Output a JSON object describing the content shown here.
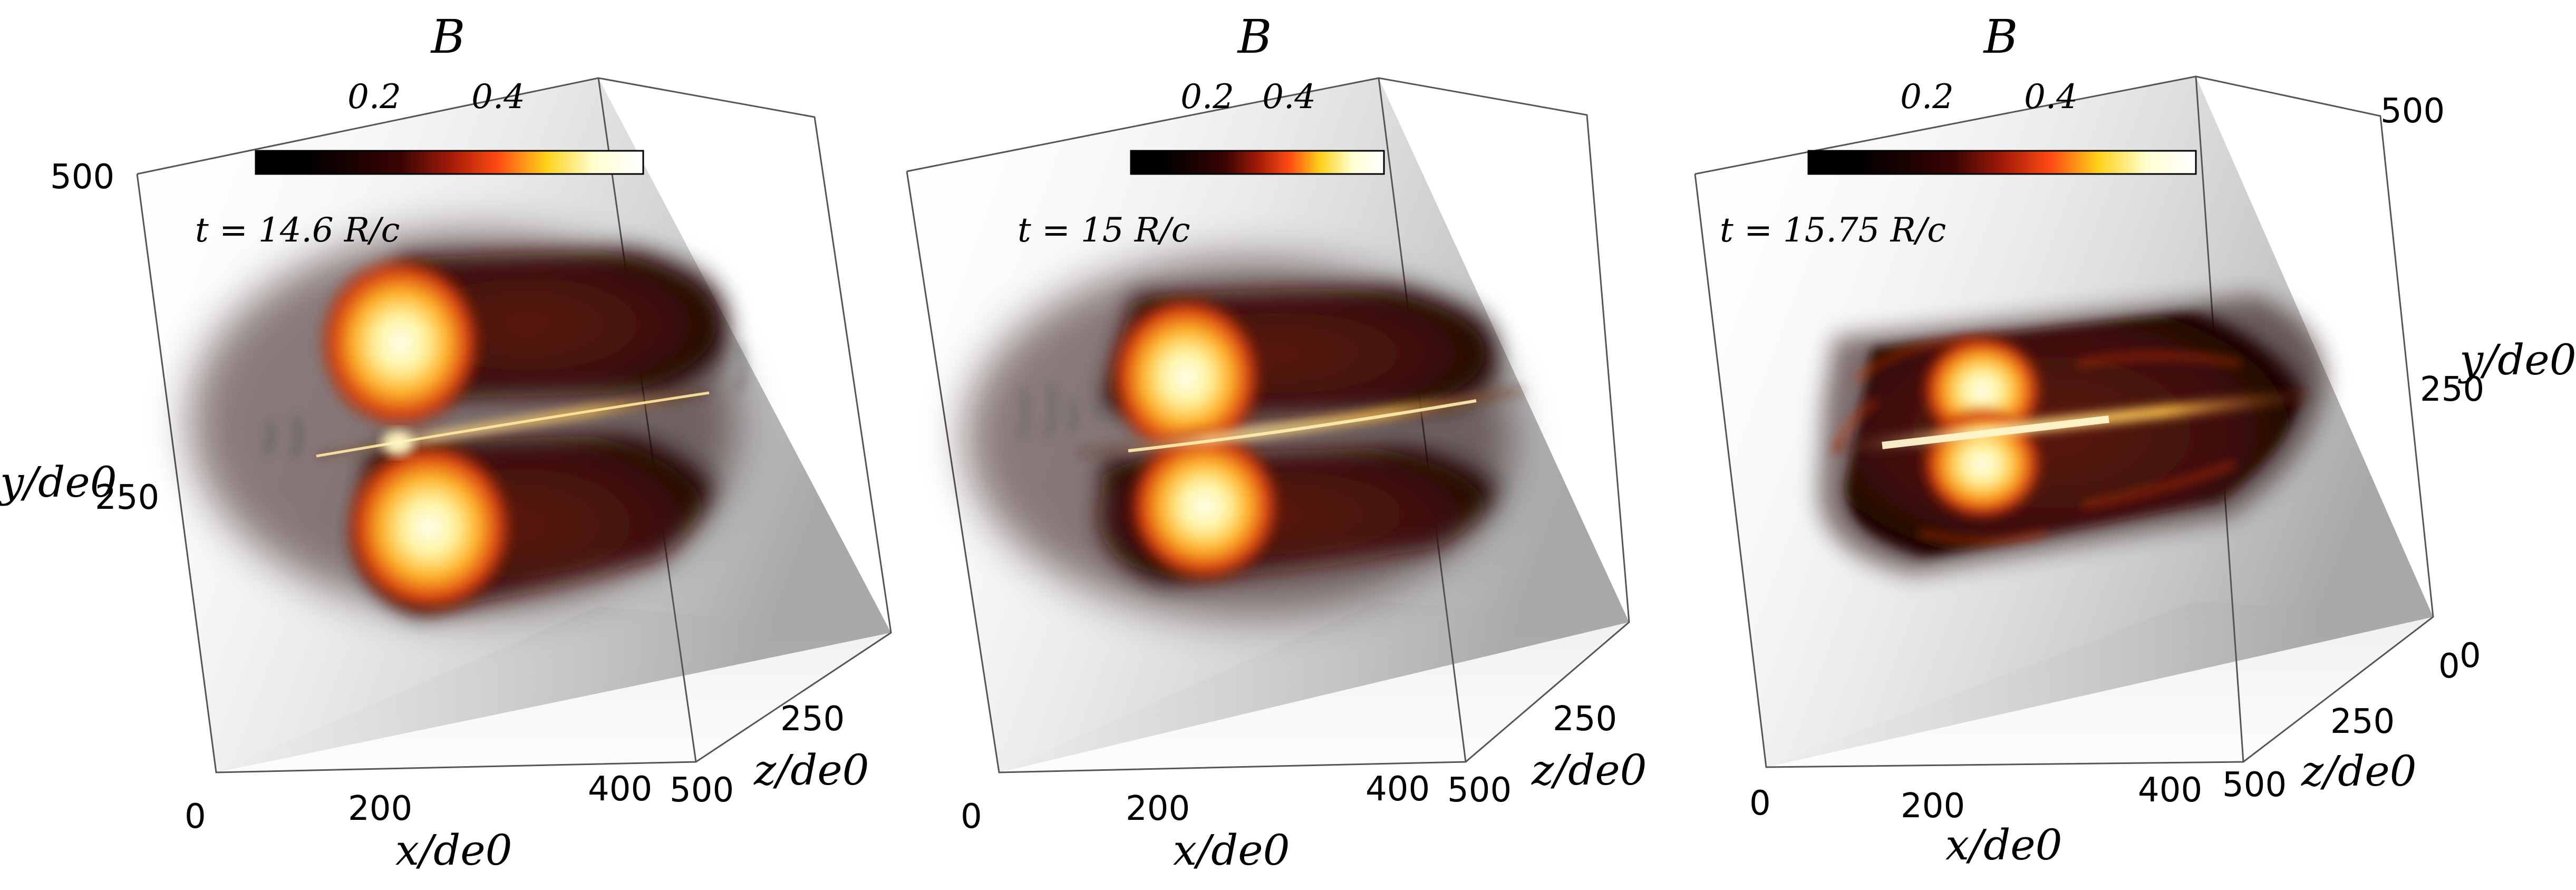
{
  "colormap": {
    "name": "black-red-yellow-white",
    "stops": [
      "#000000",
      "#000000",
      "#1a0202",
      "#3a0503",
      "#a01a08",
      "#ff4a14",
      "#ffd21a",
      "#ffffd2",
      "#ffffff"
    ]
  },
  "colors": {
    "volume_outer": "#1b0605",
    "volume_mid": "#4a130c",
    "hotspot_core": "#fffff0",
    "hotspot_mid": "#ffd93a",
    "hotspot_edge": "#e0450f",
    "current_sheet": "#ffd98a",
    "box_shade": "#8d8d8d",
    "box_edge": "#555555"
  },
  "panels": [
    {
      "id": "p1",
      "title": "B",
      "colorbar": {
        "ticks": [
          "0.2",
          "0.4"
        ]
      },
      "time_label": "t = 14.6 R/c",
      "axes": {
        "y_label": "y/de0",
        "y_ticks": [
          "500",
          "250"
        ],
        "x_label": "x/de0",
        "x_ticks": [
          "0",
          "200",
          "400",
          "500"
        ],
        "z_label": "z/de0",
        "z_ticks": [
          "250"
        ]
      }
    },
    {
      "id": "p2",
      "title": "B",
      "colorbar": {
        "ticks": [
          "0.2",
          "0.4"
        ]
      },
      "time_label": "t = 15 R/c",
      "axes": {
        "x_label": "x/de0",
        "x_ticks": [
          "0",
          "200",
          "400",
          "500"
        ],
        "z_label": "z/de0",
        "z_ticks": [
          "250"
        ]
      }
    },
    {
      "id": "p3",
      "title": "B",
      "colorbar": {
        "ticks": [
          "0.2",
          "0.4"
        ]
      },
      "time_label": "t = 15.75 R/c",
      "axes": {
        "y_label": "y/de0",
        "y_ticks": [
          "500",
          "250",
          "0"
        ],
        "x_label": "x/de0",
        "x_ticks": [
          "0",
          "200",
          "400",
          "500"
        ],
        "z_label": "z/de0",
        "z_ticks": [
          "250",
          "0"
        ]
      }
    }
  ]
}
